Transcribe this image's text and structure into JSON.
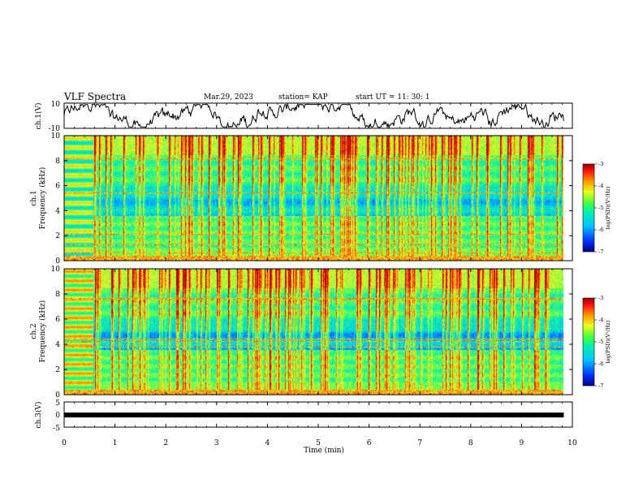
{
  "header": {
    "title": "VLF Spectra",
    "date": "Mar.29, 2023",
    "station": "station= KAP",
    "start_time": "start  UT =  11: 30: 1"
  },
  "chart_data": [
    {
      "type": "line",
      "name": "ch1-waveform",
      "ylabel": "ch.1(V)",
      "xlim": [
        0,
        10
      ],
      "xlim_data": [
        0,
        9.83
      ],
      "ylim": [
        -10,
        10
      ],
      "yticks": [
        "10",
        "-10"
      ],
      "line_color": "#000000"
    },
    {
      "type": "heatmap",
      "name": "ch1-spectrogram",
      "ylabel_top": "ch.1",
      "ylabel": "Frequency  (kHz)",
      "ylim": [
        0,
        10
      ],
      "yticks": [
        "0",
        "2",
        "4",
        "6",
        "8",
        "10"
      ],
      "colorbar": {
        "label": "log(PSD)(V²/Hz)",
        "range": [
          -7,
          -3
        ],
        "ticks": [
          "-3",
          "-4",
          "-5",
          "-6",
          "-7"
        ]
      }
    },
    {
      "type": "heatmap",
      "name": "ch2-spectrogram",
      "ylabel_top": "ch.2",
      "ylabel": "Frequency  (kHz)",
      "ylim": [
        0,
        10
      ],
      "yticks": [
        "0",
        "2",
        "4",
        "6",
        "8",
        "10"
      ],
      "colorbar": {
        "label": "log(PSD)(V²/Hz)",
        "range": [
          -7,
          -3
        ],
        "ticks": [
          "-3",
          "-4",
          "-5",
          "-6",
          "-7"
        ]
      }
    },
    {
      "type": "line",
      "name": "ch3-signal",
      "ylabel": "ch.3(V)",
      "xlim": [
        0,
        10
      ],
      "ylim": [
        -5,
        5
      ],
      "yticks": [
        "5",
        "0",
        "-5"
      ],
      "x": [
        0,
        9.83
      ],
      "y": [
        0,
        0
      ]
    }
  ],
  "xaxis": {
    "label": "Time  (min)",
    "ticks": [
      "0",
      "1",
      "2",
      "3",
      "4",
      "5",
      "6",
      "7",
      "8",
      "9",
      "10"
    ]
  },
  "colors": {
    "colormap": [
      "#0000a0",
      "#0030ff",
      "#00b0ff",
      "#00e8c8",
      "#50ff50",
      "#e0ff30",
      "#ffb000",
      "#ff2020",
      "#b00000"
    ]
  }
}
